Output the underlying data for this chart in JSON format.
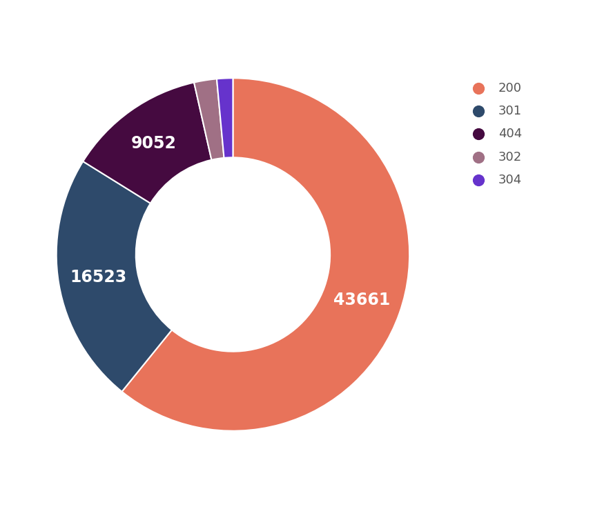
{
  "labels": [
    "200",
    "301",
    "404",
    "302",
    "304"
  ],
  "values": [
    43661,
    16523,
    9052,
    1490,
    1050
  ],
  "colors": [
    "#E8735A",
    "#2E4A6B",
    "#450A40",
    "#A07085",
    "#6633CC"
  ],
  "wedge_labels": [
    "43661",
    "16523",
    "9052",
    "",
    ""
  ],
  "background_color": "#ffffff",
  "text_color_inside": "#ffffff",
  "label_fontsize": 17,
  "legend_fontsize": 13,
  "figsize": [
    8.88,
    7.38
  ],
  "dpi": 100
}
